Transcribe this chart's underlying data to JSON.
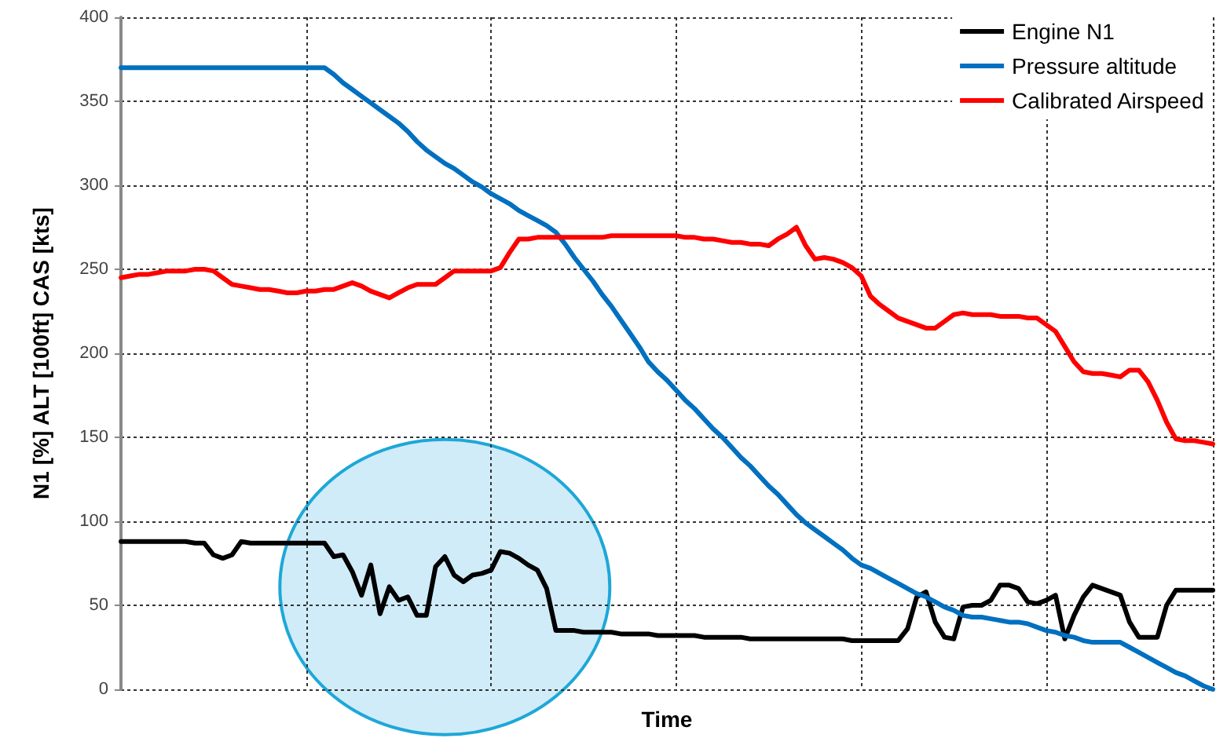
{
  "chart_data": {
    "type": "line",
    "xlabel": "Time",
    "ylabel": "N1 [%] ALT [100ft] CAS [kts]",
    "categories": [
      null,
      null,
      null,
      null,
      null,
      null,
      null,
      null,
      null,
      null,
      null,
      null,
      null,
      null,
      null,
      null,
      null,
      null,
      null,
      null,
      null,
      null,
      null,
      null,
      null,
      null,
      null,
      null,
      null,
      null,
      null,
      null,
      null,
      null,
      null,
      null,
      null,
      null,
      null,
      null,
      null,
      null,
      null,
      null,
      null,
      null,
      null,
      null,
      null,
      null,
      null,
      null,
      null,
      null,
      null,
      null,
      null,
      null,
      null,
      null,
      null,
      null,
      null,
      null,
      null,
      null,
      null,
      null,
      null,
      null,
      null,
      null,
      null,
      null,
      null,
      null,
      null,
      null,
      null,
      null,
      null,
      null,
      null,
      null,
      null,
      null,
      null,
      null,
      null,
      null,
      null,
      null,
      null,
      null,
      null,
      null,
      null,
      null,
      null,
      null,
      null,
      null,
      null,
      null,
      null,
      null,
      null,
      null,
      null,
      null,
      null,
      null,
      null,
      null,
      null,
      null,
      null,
      null,
      null
    ],
    "ylim": [
      0,
      400
    ],
    "yticks": [
      0,
      50,
      100,
      150,
      200,
      250,
      300,
      350,
      400
    ],
    "tick_labels": "y",
    "grid": true,
    "legend": "top right",
    "line_style": "solid",
    "series": [
      {
        "name": "Engine N1",
        "color": "#000000",
        "values": [
          88,
          88,
          88,
          88,
          88,
          88,
          88,
          88,
          87,
          87,
          80,
          78,
          80,
          88,
          87,
          87,
          87,
          87,
          87,
          87,
          87,
          87,
          87,
          79,
          80,
          70,
          56,
          74,
          45,
          61,
          53,
          55,
          44,
          44,
          73,
          79,
          68,
          64,
          68,
          69,
          71,
          82,
          81,
          78,
          74,
          71,
          60,
          35,
          35,
          35,
          34,
          34,
          34,
          34,
          33,
          33,
          33,
          33,
          32,
          32,
          32,
          32,
          32,
          31,
          31,
          31,
          31,
          31,
          30,
          30,
          30,
          30,
          30,
          30,
          30,
          30,
          30,
          30,
          30,
          29,
          29,
          29,
          29,
          29,
          29,
          36,
          55,
          58,
          40,
          31,
          30,
          49,
          50,
          50,
          53,
          62,
          62,
          60,
          52,
          51,
          53,
          56,
          30,
          44,
          55,
          62,
          60,
          58,
          56,
          40,
          31,
          31,
          31,
          50,
          59,
          59,
          59,
          59,
          59
        ]
      },
      {
        "name": "Pressure altitude",
        "color": "#0070c0",
        "values": [
          370,
          370,
          370,
          370,
          370,
          370,
          370,
          370,
          370,
          370,
          370,
          370,
          370,
          370,
          370,
          370,
          370,
          370,
          370,
          370,
          370,
          370,
          370,
          366,
          361,
          357,
          353,
          349,
          345,
          341,
          337,
          332,
          326,
          321,
          317,
          313,
          310,
          306,
          302,
          299,
          295,
          292,
          289,
          285,
          282,
          279,
          276,
          272,
          265,
          257,
          250,
          243,
          235,
          228,
          220,
          212,
          204,
          195,
          189,
          184,
          178,
          172,
          167,
          161,
          155,
          150,
          144,
          138,
          133,
          127,
          121,
          116,
          110,
          104,
          99,
          95,
          91,
          87,
          83,
          78,
          74,
          72,
          69,
          66,
          63,
          60,
          57,
          55,
          52,
          49,
          47,
          44,
          43,
          43,
          42,
          41,
          40,
          40,
          39,
          37,
          35,
          34,
          32,
          31,
          29,
          28,
          28,
          28,
          28,
          25,
          22,
          19,
          16,
          13,
          10,
          8,
          5,
          2,
          0
        ]
      },
      {
        "name": "Calibrated Airspeed",
        "color": "#ff0000",
        "values": [
          245,
          246,
          247,
          247,
          248,
          249,
          249,
          249,
          250,
          250,
          249,
          245,
          241,
          240,
          239,
          238,
          238,
          237,
          236,
          236,
          237,
          237,
          238,
          238,
          240,
          242,
          240,
          237,
          235,
          233,
          236,
          239,
          241,
          241,
          241,
          245,
          249,
          249,
          249,
          249,
          249,
          251,
          260,
          268,
          268,
          269,
          269,
          269,
          269,
          269,
          269,
          269,
          269,
          270,
          270,
          270,
          270,
          270,
          270,
          270,
          270,
          269,
          269,
          268,
          268,
          267,
          266,
          266,
          265,
          265,
          264,
          268,
          271,
          275,
          264,
          256,
          257,
          256,
          254,
          251,
          246,
          234,
          229,
          225,
          221,
          219,
          217,
          215,
          215,
          219,
          223,
          224,
          223,
          223,
          223,
          222,
          222,
          222,
          221,
          221,
          217,
          213,
          204,
          195,
          189,
          188,
          188,
          187,
          186,
          190,
          190,
          183,
          172,
          159,
          149,
          148,
          148,
          147,
          146
        ]
      }
    ]
  }
}
